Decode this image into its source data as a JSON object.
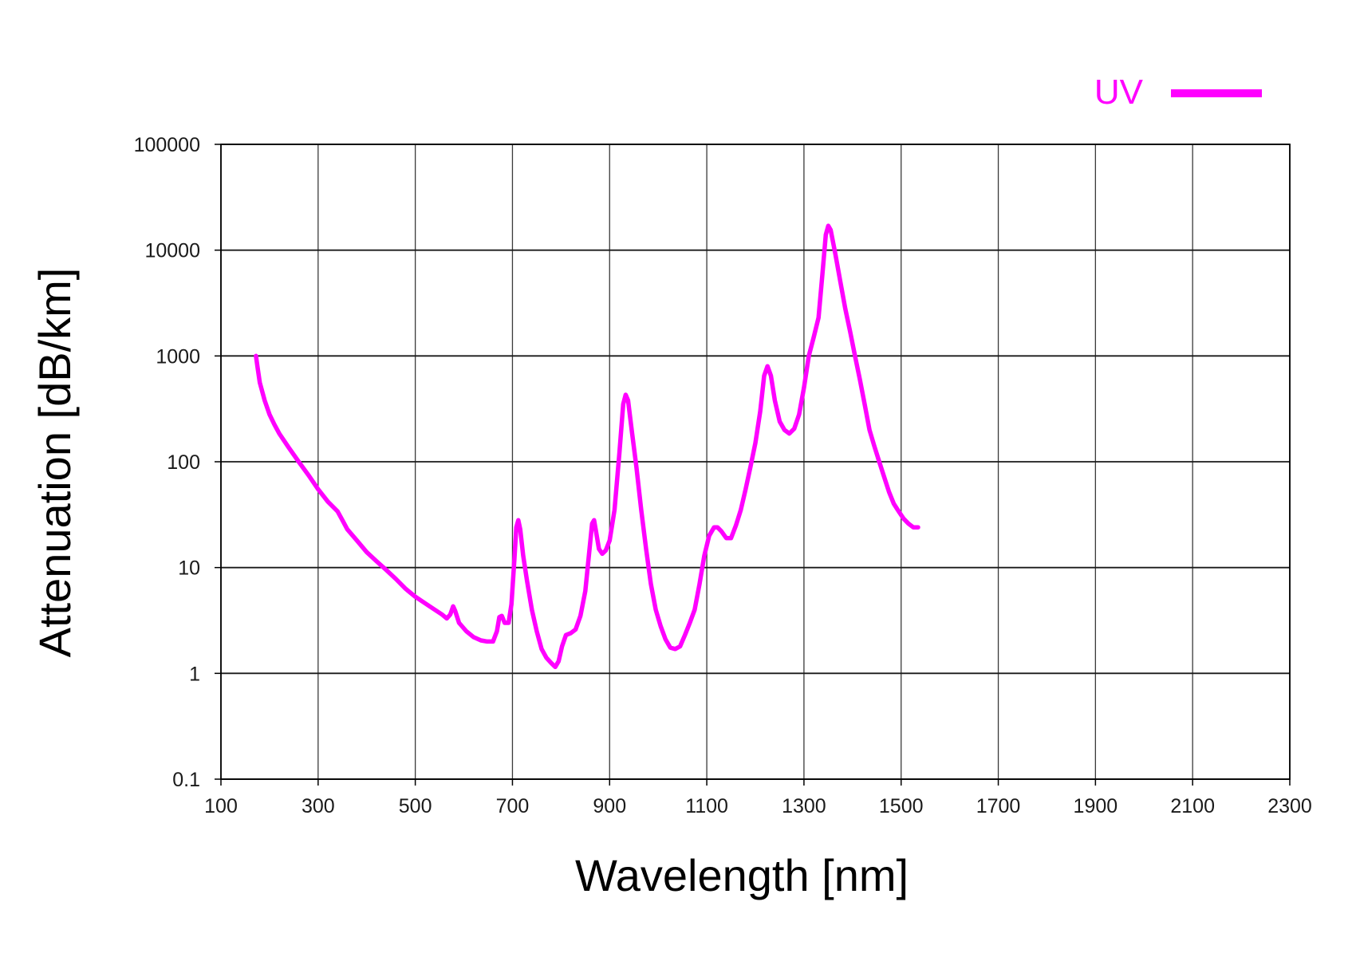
{
  "chart_data": {
    "type": "line",
    "title": "",
    "xlabel": "Wavelength [nm]",
    "ylabel": "Attenuation [dB/km]",
    "x_scale": "linear",
    "y_scale": "log",
    "xlim": [
      100,
      2300
    ],
    "ylim": [
      0.1,
      100000
    ],
    "x_ticks": [
      100,
      300,
      500,
      700,
      900,
      1100,
      1300,
      1500,
      1700,
      1900,
      2100,
      2300
    ],
    "x_tick_labels": [
      "100",
      "300",
      "500",
      "700",
      "900",
      "1100",
      "1300",
      "1500",
      "1700",
      "1900",
      "2100",
      "2300"
    ],
    "y_ticks": [
      0.1,
      1,
      10,
      100,
      1000,
      10000,
      100000
    ],
    "y_tick_labels": [
      "0.1",
      "1",
      "10",
      "100",
      "1000",
      "10000",
      "100000"
    ],
    "grid": true,
    "legend_position": "top-right",
    "series": [
      {
        "name": "UV",
        "color": "#ff00ff",
        "points": [
          [
            172,
            1000
          ],
          [
            175,
            800
          ],
          [
            180,
            560
          ],
          [
            190,
            380
          ],
          [
            200,
            280
          ],
          [
            210,
            225
          ],
          [
            220,
            185
          ],
          [
            240,
            135
          ],
          [
            260,
            100
          ],
          [
            280,
            75
          ],
          [
            300,
            55
          ],
          [
            320,
            42
          ],
          [
            340,
            34
          ],
          [
            350,
            28
          ],
          [
            360,
            23
          ],
          [
            380,
            18
          ],
          [
            400,
            14
          ],
          [
            420,
            11.5
          ],
          [
            440,
            9.5
          ],
          [
            460,
            7.8
          ],
          [
            480,
            6.3
          ],
          [
            500,
            5.3
          ],
          [
            520,
            4.6
          ],
          [
            540,
            4
          ],
          [
            555,
            3.6
          ],
          [
            565,
            3.3
          ],
          [
            572,
            3.6
          ],
          [
            578,
            4.3
          ],
          [
            582,
            3.9
          ],
          [
            590,
            3
          ],
          [
            605,
            2.5
          ],
          [
            620,
            2.2
          ],
          [
            635,
            2.05
          ],
          [
            648,
            2
          ],
          [
            660,
            2
          ],
          [
            668,
            2.5
          ],
          [
            673,
            3.4
          ],
          [
            678,
            3.5
          ],
          [
            684,
            3
          ],
          [
            692,
            3
          ],
          [
            698,
            4.5
          ],
          [
            704,
            12
          ],
          [
            708,
            24
          ],
          [
            712,
            28
          ],
          [
            716,
            23
          ],
          [
            722,
            13
          ],
          [
            730,
            7.5
          ],
          [
            740,
            4
          ],
          [
            750,
            2.5
          ],
          [
            760,
            1.7
          ],
          [
            770,
            1.4
          ],
          [
            780,
            1.25
          ],
          [
            788,
            1.15
          ],
          [
            795,
            1.3
          ],
          [
            802,
            1.8
          ],
          [
            810,
            2.3
          ],
          [
            820,
            2.4
          ],
          [
            830,
            2.6
          ],
          [
            840,
            3.5
          ],
          [
            850,
            6
          ],
          [
            858,
            14
          ],
          [
            864,
            26
          ],
          [
            868,
            28
          ],
          [
            872,
            22
          ],
          [
            878,
            15
          ],
          [
            885,
            13.5
          ],
          [
            892,
            14.5
          ],
          [
            900,
            18
          ],
          [
            910,
            35
          ],
          [
            920,
            120
          ],
          [
            928,
            350
          ],
          [
            933,
            430
          ],
          [
            938,
            380
          ],
          [
            946,
            190
          ],
          [
            955,
            90
          ],
          [
            965,
            35
          ],
          [
            975,
            15
          ],
          [
            985,
            7
          ],
          [
            995,
            4
          ],
          [
            1005,
            2.8
          ],
          [
            1015,
            2.1
          ],
          [
            1025,
            1.75
          ],
          [
            1035,
            1.7
          ],
          [
            1045,
            1.8
          ],
          [
            1055,
            2.3
          ],
          [
            1065,
            3
          ],
          [
            1075,
            4
          ],
          [
            1085,
            7
          ],
          [
            1095,
            13
          ],
          [
            1105,
            20
          ],
          [
            1115,
            24
          ],
          [
            1122,
            24
          ],
          [
            1130,
            22
          ],
          [
            1140,
            19
          ],
          [
            1150,
            19
          ],
          [
            1160,
            25
          ],
          [
            1170,
            35
          ],
          [
            1180,
            55
          ],
          [
            1190,
            90
          ],
          [
            1200,
            150
          ],
          [
            1210,
            300
          ],
          [
            1218,
            650
          ],
          [
            1225,
            800
          ],
          [
            1232,
            650
          ],
          [
            1240,
            380
          ],
          [
            1250,
            240
          ],
          [
            1260,
            200
          ],
          [
            1270,
            185
          ],
          [
            1280,
            205
          ],
          [
            1290,
            280
          ],
          [
            1300,
            500
          ],
          [
            1310,
            1000
          ],
          [
            1320,
            1500
          ],
          [
            1330,
            2300
          ],
          [
            1338,
            6000
          ],
          [
            1345,
            14000
          ],
          [
            1350,
            17000
          ],
          [
            1355,
            15500
          ],
          [
            1365,
            9000
          ],
          [
            1375,
            5000
          ],
          [
            1385,
            2800
          ],
          [
            1395,
            1700
          ],
          [
            1405,
            1000
          ],
          [
            1415,
            600
          ],
          [
            1425,
            350
          ],
          [
            1435,
            200
          ],
          [
            1445,
            140
          ],
          [
            1455,
            100
          ],
          [
            1465,
            72
          ],
          [
            1475,
            52
          ],
          [
            1485,
            40
          ],
          [
            1495,
            34
          ],
          [
            1505,
            29
          ],
          [
            1515,
            26
          ],
          [
            1525,
            24
          ],
          [
            1535,
            24
          ]
        ]
      }
    ]
  }
}
